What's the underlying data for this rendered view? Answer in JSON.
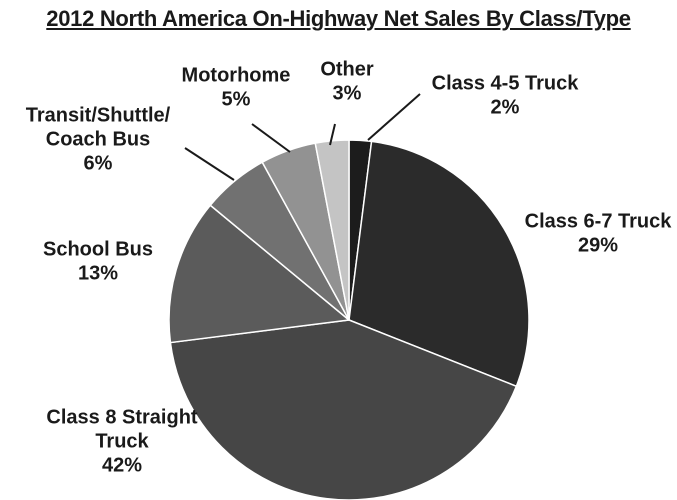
{
  "chart_data": {
    "type": "pie",
    "title": "2012 North America On-Highway Net Sales By Class/Type",
    "slices": [
      {
        "label_lines": [
          "Class 4-5 Truck"
        ],
        "pct_text": "2%",
        "value": 2,
        "color": "#1c1c1c"
      },
      {
        "label_lines": [
          "Class 6-7 Truck"
        ],
        "pct_text": "29%",
        "value": 29,
        "color": "#2b2b2b"
      },
      {
        "label_lines": [
          "Class 8 Straight",
          "Truck"
        ],
        "pct_text": "42%",
        "value": 42,
        "color": "#464646"
      },
      {
        "label_lines": [
          "School Bus"
        ],
        "pct_text": "13%",
        "value": 13,
        "color": "#5b5b5b"
      },
      {
        "label_lines": [
          "Transit/Shuttle/",
          "Coach Bus"
        ],
        "pct_text": "6%",
        "value": 6,
        "color": "#717171"
      },
      {
        "label_lines": [
          "Motorhome"
        ],
        "pct_text": "5%",
        "value": 5,
        "color": "#929292"
      },
      {
        "label_lines": [
          "Other"
        ],
        "pct_text": "3%",
        "value": 3,
        "color": "#c4c4c4"
      }
    ]
  }
}
